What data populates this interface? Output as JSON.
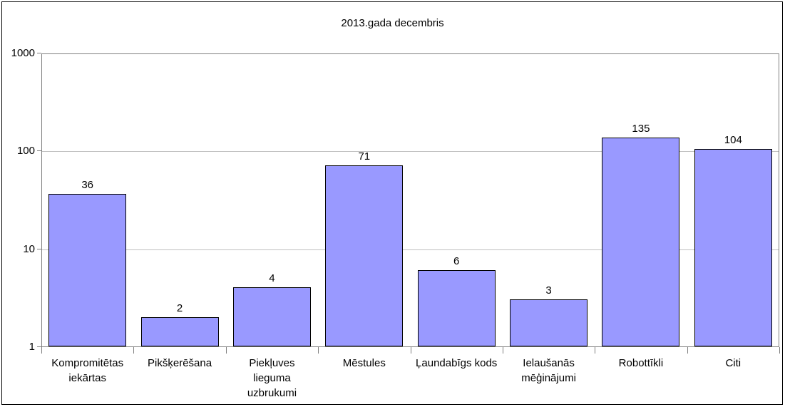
{
  "chart_data": {
    "type": "bar",
    "title": "2013.gada decembris",
    "categories": [
      "Kompromitētas iekārtas",
      "Pikšķerēšana",
      "Piekļuves lieguma uzbrukumi",
      "Mēstules",
      "Ļaundabīgs kods",
      "Ielaušanās mēģinājumi",
      "Robottīkli",
      "Citi"
    ],
    "category_label_lines": [
      [
        "Kompromitētas",
        "iekārtas"
      ],
      [
        "Pikšķerēšana"
      ],
      [
        "Piekļuves",
        "lieguma",
        "uzbrukumi"
      ],
      [
        "Mēstules"
      ],
      [
        "Ļaundabīgs kods"
      ],
      [
        "Ielaušanās",
        "mēģinājumi"
      ],
      [
        "Robottīkli"
      ],
      [
        "Citi"
      ]
    ],
    "values": [
      36,
      2,
      4,
      71,
      6,
      3,
      135,
      104
    ],
    "xlabel": "",
    "ylabel": "",
    "y_axis": {
      "scale": "log",
      "min": 1,
      "max": 1000,
      "ticks": [
        1,
        10,
        100,
        1000
      ]
    },
    "grid": true,
    "legend_position": "none",
    "colors": {
      "bar_fill": "#9999FF",
      "bar_border": "#000000",
      "gridline": "#C0C0C0",
      "axis": "#808080",
      "text": "#000000",
      "background": "#FFFFFF",
      "frame_border": "#000000"
    }
  }
}
